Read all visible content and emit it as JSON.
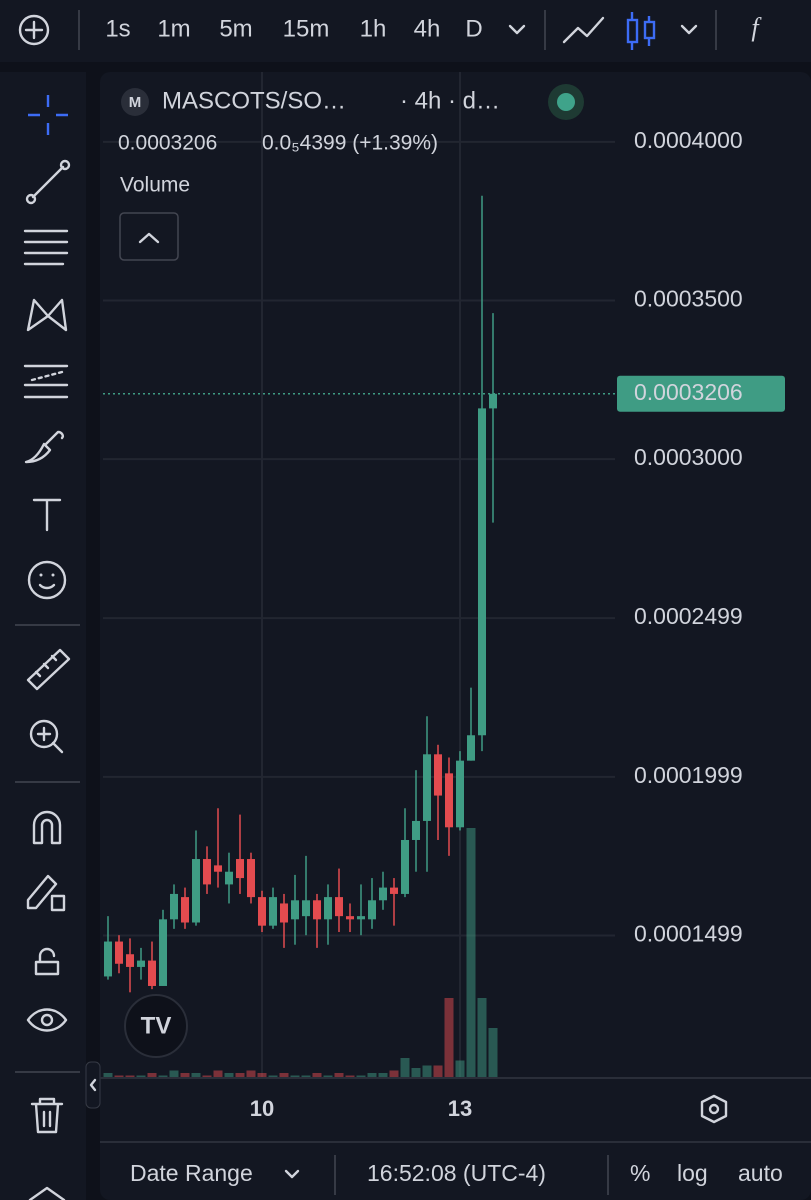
{
  "ui": {
    "intervals": [
      "1s",
      "1m",
      "5m",
      "15m",
      "1h",
      "4h",
      "D"
    ],
    "symbol": "MASCOTS/SO…",
    "symbol_meta": "· 4h · d…",
    "logo_letter": "M",
    "price": "0.0003206",
    "change": "0.0₅4399 (+1.39%)",
    "indicator": "Volume",
    "date_range": "Date Range",
    "clock": "16:52:08 (UTC-4)",
    "percent": "%",
    "log": "log",
    "auto": "auto"
  },
  "chart_data": {
    "type": "candlestick",
    "categories": [
      null,
      null,
      null,
      null,
      null,
      null,
      null,
      null,
      null,
      null,
      null,
      null,
      null,
      null,
      "10",
      null,
      null,
      null,
      null,
      null,
      null,
      null,
      null,
      null,
      null,
      null,
      null,
      null,
      null,
      null,
      null,
      null,
      "13",
      null,
      null,
      null
    ],
    "open": [
      0.000137,
      0.000148,
      0.000144,
      0.00014,
      0.000142,
      0.000134,
      0.000155,
      0.000162,
      0.000154,
      0.000174,
      0.000172,
      0.000166,
      0.000174,
      0.000174,
      0.000162,
      0.000153,
      0.00016,
      0.000155,
      0.000156,
      0.000161,
      0.000155,
      0.000162,
      0.000156,
      0.000155,
      0.000155,
      0.000161,
      0.000165,
      0.000163,
      0.00018,
      0.000186,
      0.000207,
      0.000201,
      0.000184,
      0.000205,
      0.000213,
      0.000316
    ],
    "high": [
      0.000156,
      0.00015,
      0.000149,
      0.000146,
      0.000148,
      0.000158,
      0.000166,
      0.000165,
      0.000183,
      0.000178,
      0.00019,
      0.000176,
      0.000188,
      0.000176,
      0.000164,
      0.000165,
      0.000163,
      0.000169,
      0.000175,
      0.000163,
      0.000166,
      0.000171,
      0.00016,
      0.000166,
      0.000168,
      0.00017,
      0.000168,
      0.00019,
      0.000202,
      0.000219,
      0.00021,
      0.000206,
      0.000208,
      0.000228,
      0.000383,
      0.000346
    ],
    "low": [
      0.000136,
      0.000138,
      0.000132,
      0.000136,
      0.000133,
      0.000134,
      0.000152,
      0.000152,
      0.000153,
      0.000163,
      0.000165,
      0.00016,
      0.000163,
      0.00016,
      0.000151,
      0.000152,
      0.000146,
      0.000147,
      0.00015,
      0.000146,
      0.000147,
      0.000151,
      0.000151,
      0.00015,
      0.000152,
      0.000158,
      0.000153,
      0.000162,
      0.00017,
      0.00017,
      0.00018,
      0.000175,
      0.000183,
      0.000205,
      0.000208,
      0.00028
    ],
    "close": [
      0.000148,
      0.000141,
      0.00014,
      0.000142,
      0.000134,
      0.000155,
      0.000163,
      0.000154,
      0.000174,
      0.000166,
      0.00017,
      0.00017,
      0.000168,
      0.000162,
      0.000153,
      0.000162,
      0.000154,
      0.000161,
      0.000161,
      0.000155,
      0.000162,
      0.000156,
      0.000155,
      0.000156,
      0.000161,
      0.000165,
      0.000163,
      0.00018,
      0.000186,
      0.000207,
      0.000194,
      0.000184,
      0.000205,
      0.000213,
      0.000316,
      0.0003206
    ],
    "volume": [
      2,
      1,
      1,
      1,
      2,
      1,
      3,
      2,
      2,
      1,
      3,
      2,
      2,
      3,
      2,
      1,
      2,
      1,
      1,
      2,
      1,
      2,
      1,
      1,
      2,
      2,
      3,
      8,
      4,
      5,
      5,
      32,
      7,
      100,
      32,
      20
    ],
    "up_color": "#3f9c84",
    "down_color": "#e34b4f",
    "last_price": 0.0003206,
    "last_price_label": "0.0003206",
    "ylim": [
      0.000105,
      0.000422
    ],
    "yticks": [
      {
        "value": 0.0004,
        "label": "0.0004000"
      },
      {
        "value": 0.00035,
        "label": "0.0003500"
      },
      {
        "value": 0.0003,
        "label": "0.0003000"
      },
      {
        "value": 0.0002499,
        "label": "0.0002499"
      },
      {
        "value": 0.0001999,
        "label": "0.0001999"
      },
      {
        "value": 0.0001499,
        "label": "0.0001499"
      }
    ],
    "grid": true
  }
}
